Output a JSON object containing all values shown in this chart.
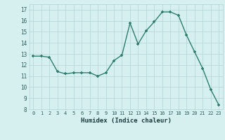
{
  "x": [
    0,
    1,
    2,
    3,
    4,
    5,
    6,
    7,
    8,
    9,
    10,
    11,
    12,
    13,
    14,
    15,
    16,
    17,
    18,
    19,
    20,
    21,
    22,
    23
  ],
  "y": [
    12.8,
    12.8,
    12.7,
    11.4,
    11.2,
    11.3,
    11.3,
    11.3,
    11.0,
    11.3,
    12.4,
    12.9,
    15.8,
    13.9,
    15.1,
    15.9,
    16.8,
    16.8,
    16.5,
    14.7,
    13.2,
    11.7,
    9.8,
    8.4
  ],
  "xlabel": "Humidex (Indice chaleur)",
  "line_color": "#2e7d6e",
  "marker_color": "#2e7d6e",
  "bg_color": "#d6f0f0",
  "grid_color": "#b8d8d8",
  "tick_label_color": "#2e5e5e",
  "xlabel_color": "#1a3a3a",
  "ylim": [
    8,
    17.5
  ],
  "xlim": [
    -0.5,
    23.5
  ],
  "yticks": [
    8,
    9,
    10,
    11,
    12,
    13,
    14,
    15,
    16,
    17
  ],
  "xticks": [
    0,
    1,
    2,
    3,
    4,
    5,
    6,
    7,
    8,
    9,
    10,
    11,
    12,
    13,
    14,
    15,
    16,
    17,
    18,
    19,
    20,
    21,
    22,
    23
  ]
}
